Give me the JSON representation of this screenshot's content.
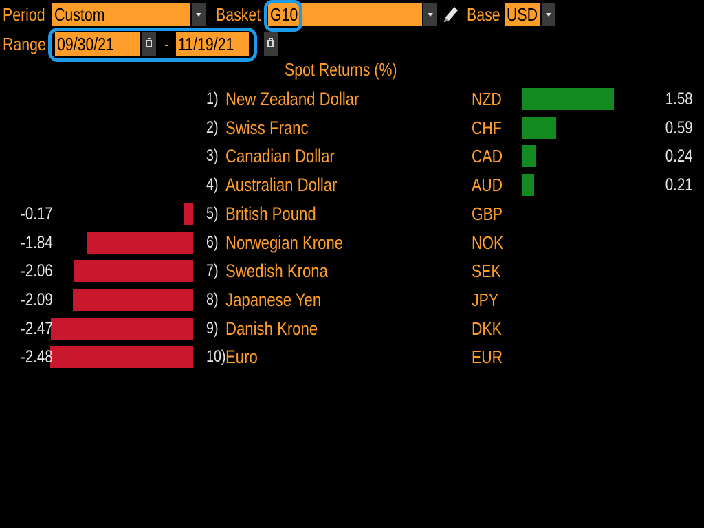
{
  "toolbar": {
    "period_label": "Period",
    "period_value": "Custom",
    "basket_label": "Basket",
    "basket_value": "G10",
    "base_label": "Base",
    "base_value": "USD",
    "range_label": "Range",
    "range_start": "09/30/21",
    "range_sep": "-",
    "range_end": "11/19/21"
  },
  "icons": {
    "dropdown": "chevron-down-icon",
    "calendar": "calendar-icon",
    "edit": "pencil-icon"
  },
  "colors": {
    "accent": "#ff9d2a",
    "positive": "#128a1f",
    "negative": "#c9182e",
    "highlight": "#1e9be8",
    "background": "#000000"
  },
  "chart_data": {
    "type": "bar",
    "title": "Spot Returns (%)",
    "orientation": "horizontal",
    "rows": [
      {
        "rank": "1)",
        "name": "New Zealand Dollar",
        "code": "NZD",
        "value": 1.58,
        "label": "1.58"
      },
      {
        "rank": "2)",
        "name": "Swiss Franc",
        "code": "CHF",
        "value": 0.59,
        "label": "0.59"
      },
      {
        "rank": "3)",
        "name": "Canadian Dollar",
        "code": "CAD",
        "value": 0.24,
        "label": "0.24"
      },
      {
        "rank": "4)",
        "name": "Australian Dollar",
        "code": "AUD",
        "value": 0.21,
        "label": "0.21"
      },
      {
        "rank": "5)",
        "name": "British Pound",
        "code": "GBP",
        "value": -0.17,
        "label": "-0.17"
      },
      {
        "rank": "6)",
        "name": "Norwegian Krone",
        "code": "NOK",
        "value": -1.84,
        "label": "-1.84"
      },
      {
        "rank": "7)",
        "name": "Swedish Krona",
        "code": "SEK",
        "value": -2.06,
        "label": "-2.06"
      },
      {
        "rank": "8)",
        "name": "Japanese Yen",
        "code": "JPY",
        "value": -2.09,
        "label": "-2.09"
      },
      {
        "rank": "9)",
        "name": "Danish Krone",
        "code": "DKK",
        "value": -2.47,
        "label": "-2.47"
      },
      {
        "rank": "10)",
        "name": "Euro",
        "code": "EUR",
        "value": -2.48,
        "label": "-2.48"
      }
    ]
  }
}
